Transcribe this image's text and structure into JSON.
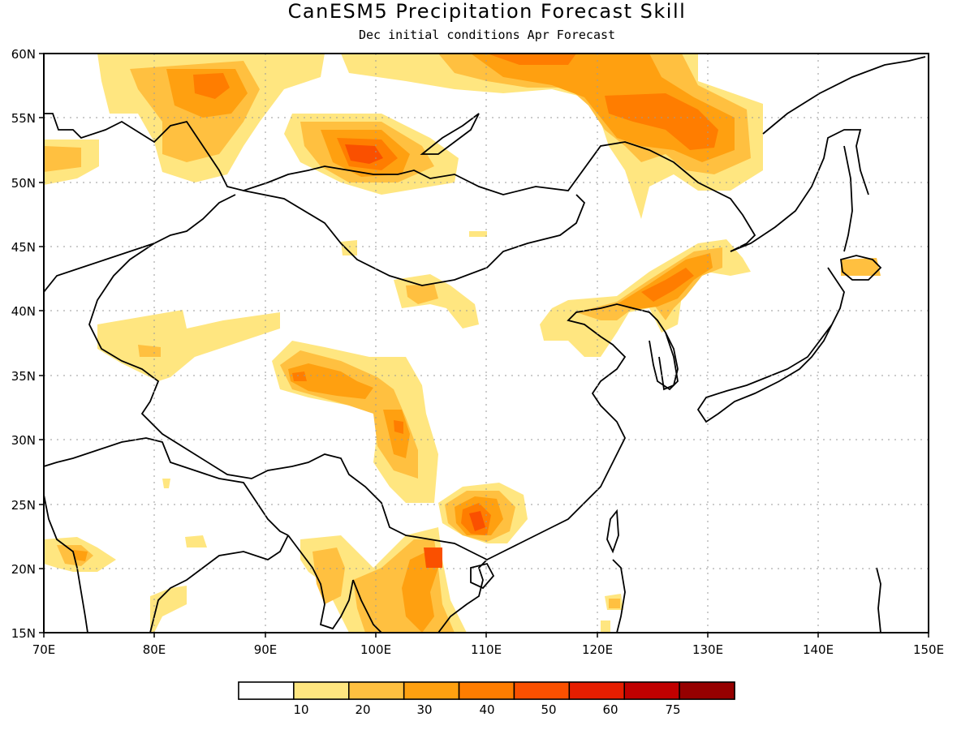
{
  "title": "CanESM5 Precipitation Forecast Skill",
  "subtitle": "Dec initial conditions  Apr Forecast",
  "map": {
    "lon_range": [
      70,
      150
    ],
    "lat_range": [
      15,
      60
    ],
    "lon_ticks": [
      "70E",
      "80E",
      "90E",
      "100E",
      "110E",
      "120E",
      "130E",
      "140E",
      "150E"
    ],
    "lat_ticks": [
      "15N",
      "20N",
      "25N",
      "30N",
      "35N",
      "40N",
      "45N",
      "50N",
      "55N",
      "60N"
    ],
    "grid": "dotted"
  },
  "colorbar": {
    "labels": [
      "10",
      "20",
      "30",
      "40",
      "50",
      "60",
      "75"
    ],
    "colors": [
      "#ffffff",
      "#ffe680",
      "#ffc040",
      "#ffa010",
      "#ff7d00",
      "#fa5000",
      "#e61e00",
      "#c00000",
      "#960000"
    ]
  }
}
